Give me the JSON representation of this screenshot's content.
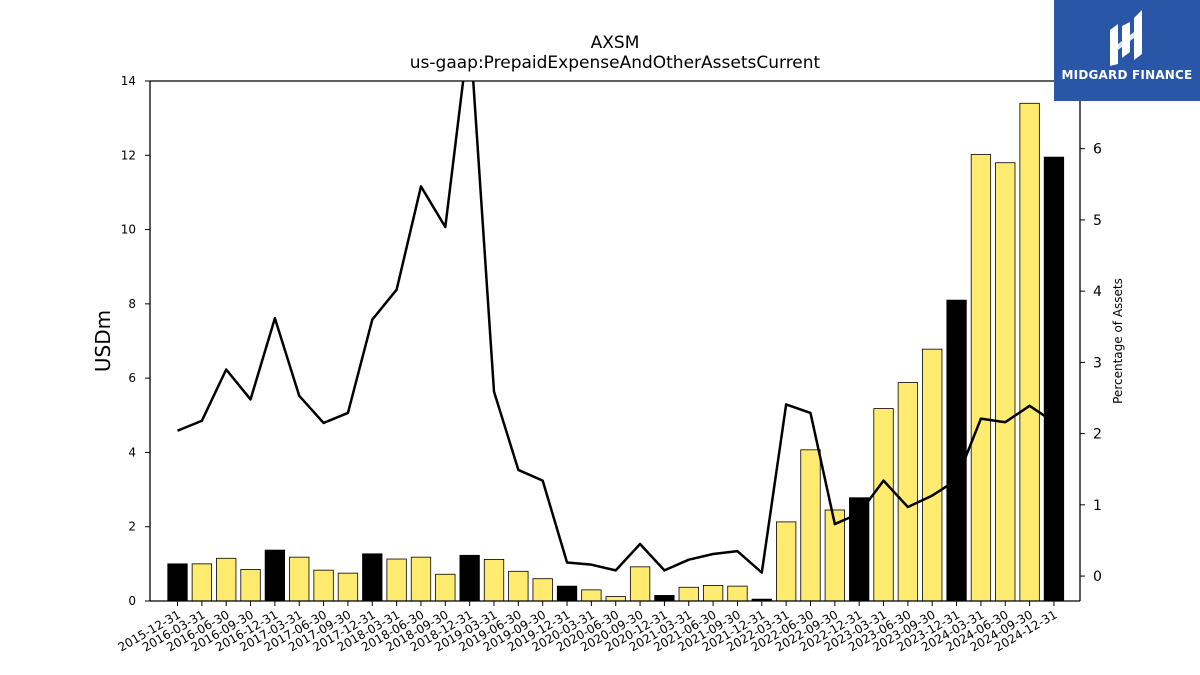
{
  "chart_data": {
    "type": "bar",
    "title": "AXSM",
    "subtitle": "us-gaap:PrepaidExpenseAndOtherAssetsCurrent",
    "ylabel": "USDm",
    "y2label": "Percentage of Assets",
    "ylim": [
      0,
      14
    ],
    "y2lim": [
      -0.35,
      6.95
    ],
    "yticks": [
      0,
      2,
      4,
      6,
      8,
      10,
      12,
      14
    ],
    "y2ticks": [
      0,
      1,
      2,
      3,
      4,
      5,
      6
    ],
    "categories": [
      "2015-12-31",
      "2016-03-31",
      "2016-06-30",
      "2016-09-30",
      "2016-12-31",
      "2017-03-31",
      "2017-06-30",
      "2017-09-30",
      "2017-12-31",
      "2018-03-31",
      "2018-06-30",
      "2018-09-30",
      "2018-12-31",
      "2019-03-31",
      "2019-06-30",
      "2019-09-30",
      "2019-12-31",
      "2020-03-31",
      "2020-06-30",
      "2020-09-30",
      "2020-12-31",
      "2021-03-31",
      "2021-06-30",
      "2021-09-30",
      "2021-12-31",
      "2022-03-31",
      "2022-06-30",
      "2022-09-30",
      "2022-12-31",
      "2023-03-31",
      "2023-06-30",
      "2023-09-30",
      "2023-12-31",
      "2024-03-31",
      "2024-06-30",
      "2024-09-30",
      "2024-12-31"
    ],
    "series": [
      {
        "kind": "bar",
        "axis": "left",
        "values": [
          1.0,
          1.0,
          1.15,
          0.85,
          1.37,
          1.18,
          0.83,
          0.75,
          1.27,
          1.13,
          1.18,
          0.72,
          1.23,
          1.12,
          0.8,
          0.6,
          0.4,
          0.3,
          0.12,
          0.92,
          0.15,
          0.37,
          0.42,
          0.4,
          0.05,
          2.13,
          4.07,
          2.45,
          2.78,
          5.18,
          5.88,
          6.78,
          8.1,
          12.02,
          11.8,
          13.4,
          11.95
        ],
        "fiscal_year_end": [
          true,
          false,
          false,
          false,
          true,
          false,
          false,
          false,
          true,
          false,
          false,
          false,
          true,
          false,
          false,
          false,
          true,
          false,
          false,
          false,
          true,
          false,
          false,
          false,
          true,
          false,
          false,
          false,
          true,
          false,
          false,
          false,
          true,
          false,
          false,
          false,
          true
        ]
      },
      {
        "kind": "line",
        "axis": "right",
        "values": [
          2.04,
          2.18,
          2.9,
          2.48,
          3.62,
          2.53,
          2.15,
          2.29,
          3.6,
          4.02,
          5.47,
          4.9,
          7.7,
          2.59,
          1.49,
          1.34,
          0.19,
          0.16,
          0.08,
          0.45,
          0.08,
          0.23,
          0.31,
          0.35,
          0.05,
          2.41,
          2.29,
          0.73,
          0.88,
          1.34,
          0.97,
          1.13,
          1.35,
          2.21,
          2.16,
          2.39,
          2.16
        ]
      }
    ],
    "colors": {
      "fiscal_year_bar": "#000000",
      "quarter_bar": "#ffeb70",
      "bar_edge": "#000000",
      "line": "#000000"
    },
    "grid": false,
    "legend": "none"
  },
  "logo": {
    "text": "MIDGARD FINANCE",
    "background": "#2a56a8"
  }
}
